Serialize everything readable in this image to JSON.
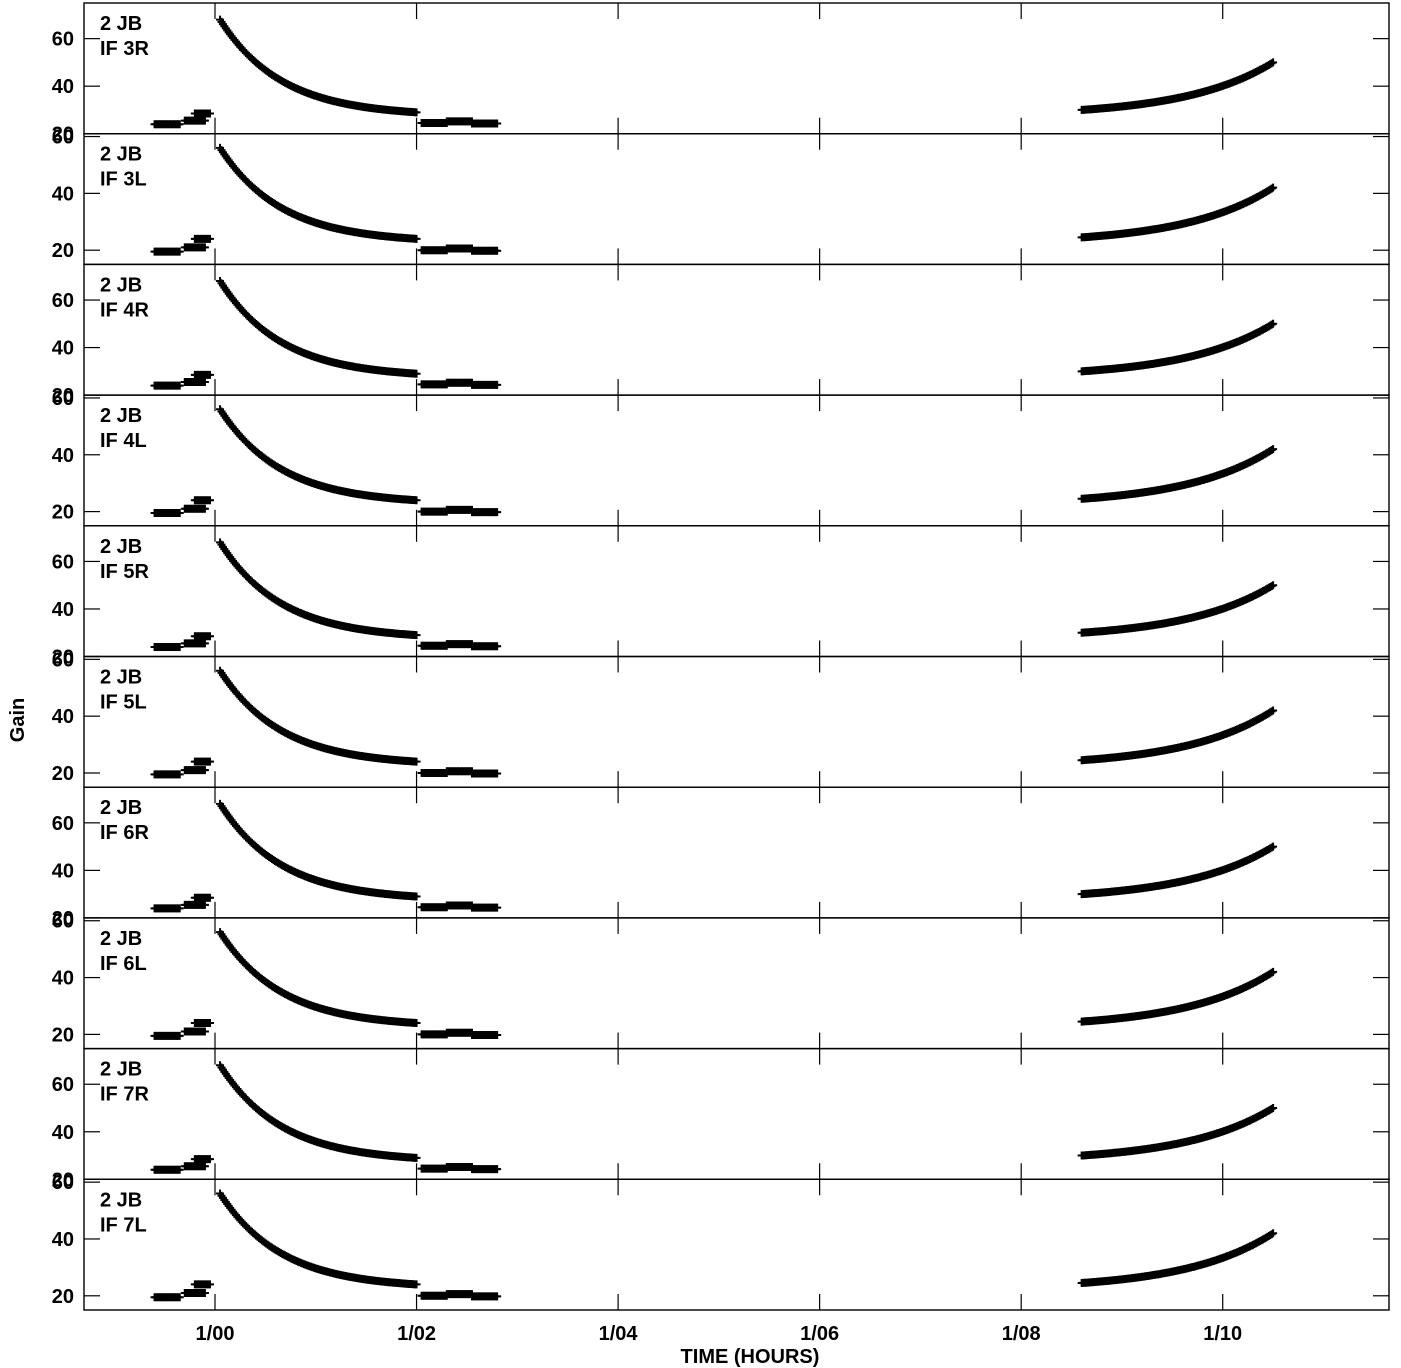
{
  "chart_data": {
    "type": "scatter",
    "ylabel": "Gain",
    "xlabel": "TIME (HOURS)",
    "x_tick_labels": [
      "1/00",
      "1/02",
      "1/04",
      "1/06",
      "1/08",
      "1/10"
    ],
    "x_tick_values_hours": [
      24,
      26,
      28,
      30,
      32,
      34
    ],
    "xlim_hours": [
      22.7,
      35.65
    ],
    "y_tick_labels": [
      "20",
      "40",
      "60"
    ],
    "y_tick_values": [
      20,
      40,
      60
    ],
    "grid": false,
    "marker": "plus",
    "panels": [
      {
        "name_line1": "2 JB",
        "name_line2": "IF 3R",
        "ylim": [
          20,
          75
        ],
        "pol": "R"
      },
      {
        "name_line1": "2 JB",
        "name_line2": "IF 3L",
        "ylim": [
          15,
          61
        ],
        "pol": "L"
      },
      {
        "name_line1": "2 JB",
        "name_line2": "IF 4R",
        "ylim": [
          20,
          75
        ],
        "pol": "R"
      },
      {
        "name_line1": "2 JB",
        "name_line2": "IF 4L",
        "ylim": [
          15,
          61
        ],
        "pol": "L"
      },
      {
        "name_line1": "2 JB",
        "name_line2": "IF 5R",
        "ylim": [
          20,
          75
        ],
        "pol": "R"
      },
      {
        "name_line1": "2 JB",
        "name_line2": "IF 5L",
        "ylim": [
          15,
          61
        ],
        "pol": "L"
      },
      {
        "name_line1": "2 JB",
        "name_line2": "IF 6R",
        "ylim": [
          20,
          75
        ],
        "pol": "R"
      },
      {
        "name_line1": "2 JB",
        "name_line2": "IF 6L",
        "ylim": [
          15,
          61
        ],
        "pol": "L"
      },
      {
        "name_line1": "2 JB",
        "name_line2": "IF 7R",
        "ylim": [
          20,
          75
        ],
        "pol": "R"
      },
      {
        "name_line1": "2 JB",
        "name_line2": "IF 7L",
        "ylim": [
          15,
          61
        ],
        "pol": "L"
      }
    ],
    "series_segments": {
      "R": [
        {
          "x_start": 23.4,
          "x_end": 23.65,
          "y_start": 24,
          "y_end": 24
        },
        {
          "x_start": 23.7,
          "x_end": 23.9,
          "y_start": 25.5,
          "y_end": 25.5
        },
        {
          "x_start": 23.8,
          "x_end": 23.95,
          "y_start": 28.5,
          "y_end": 28.5
        },
        {
          "x_start": 24.05,
          "x_end": 26.0,
          "curve": "decay",
          "y_start": 68,
          "y_end": 29
        },
        {
          "x_start": 26.05,
          "x_end": 26.3,
          "y_start": 24.5,
          "y_end": 24.5
        },
        {
          "x_start": 26.3,
          "x_end": 26.55,
          "y_start": 25.2,
          "y_end": 25.2
        },
        {
          "x_start": 26.55,
          "x_end": 26.8,
          "y_start": 24.3,
          "y_end": 24.3
        },
        {
          "x_start": 32.6,
          "x_end": 34.5,
          "curve": "rise",
          "y_start": 30,
          "y_end": 50
        }
      ],
      "L": [
        {
          "x_start": 23.4,
          "x_end": 23.65,
          "y_start": 19.5,
          "y_end": 19.5
        },
        {
          "x_start": 23.7,
          "x_end": 23.9,
          "y_start": 21,
          "y_end": 21
        },
        {
          "x_start": 23.8,
          "x_end": 23.95,
          "y_start": 24,
          "y_end": 24
        },
        {
          "x_start": 24.05,
          "x_end": 26.0,
          "curve": "decay",
          "y_start": 56,
          "y_end": 24
        },
        {
          "x_start": 26.05,
          "x_end": 26.3,
          "y_start": 20,
          "y_end": 20
        },
        {
          "x_start": 26.3,
          "x_end": 26.55,
          "y_start": 20.6,
          "y_end": 20.6
        },
        {
          "x_start": 26.55,
          "x_end": 26.8,
          "y_start": 19.8,
          "y_end": 19.8
        },
        {
          "x_start": 32.6,
          "x_end": 34.5,
          "curve": "rise",
          "y_start": 24.5,
          "y_end": 42
        }
      ]
    }
  }
}
